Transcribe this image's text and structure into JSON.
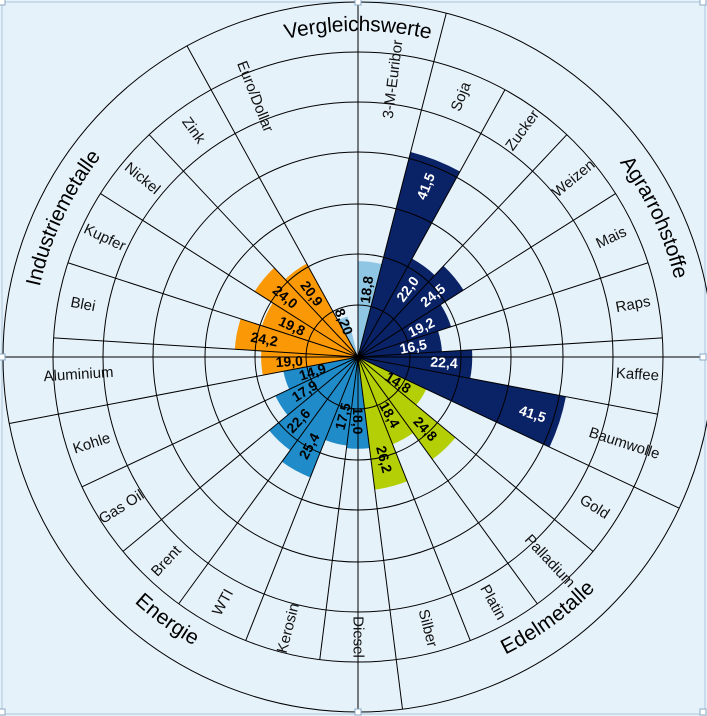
{
  "chart_data": {
    "type": "polar-bar",
    "direction": "clockwise",
    "title": "",
    "colors": {
      "Vergleichswerte": "#8ec6e4",
      "Agrarrohstoffe": "#0a2266",
      "Edelmetalle": "#b5cf06",
      "Energie": "#1f8bc8",
      "Industriemetalle": "#fb9806"
    },
    "label_colors": {
      "Vergleichswerte": "#000000",
      "Agrarrohstoffe": "#ffffff",
      "Edelmetalle": "#000000",
      "Energie": "#000000",
      "Industriemetalle": "#000000"
    },
    "groups": [
      {
        "name": "Vergleichswerte",
        "categories": [
          "3-M-Euribor"
        ],
        "values": [
          18.8
        ],
        "value_labels": [
          "18,8"
        ]
      },
      {
        "name": "Agrarrohstoffe",
        "categories": [
          "Soja",
          "Zucker",
          "Weizen",
          "Mais",
          "Raps",
          "Kaffee",
          "Baumwolle"
        ],
        "values": [
          41.5,
          22.0,
          24.5,
          19.2,
          16.5,
          22.4,
          41.5
        ],
        "value_labels": [
          "41,5",
          "22,0",
          "24,5",
          "19,2",
          "16,5",
          "22,4",
          "41,5"
        ]
      },
      {
        "name": "Edelmetalle",
        "categories": [
          "Gold",
          "Palladium",
          "Platin",
          "Silber"
        ],
        "values": [
          14.8,
          24.8,
          18.4,
          26.2
        ],
        "value_labels": [
          "14,8",
          "24,8",
          "18,4",
          "26,2"
        ]
      },
      {
        "name": "Energie",
        "categories": [
          "Diesel",
          "Kerosin",
          "WTI",
          "Brent",
          "Gas Oil",
          "Kohle"
        ],
        "values": [
          18.0,
          17.5,
          25.4,
          22.6,
          17.9,
          14.9
        ],
        "value_labels": [
          "18,0",
          "17,5",
          "25,4",
          "22,6",
          "17,9",
          "14,9"
        ]
      },
      {
        "name": "Industriemetalle",
        "categories": [
          "Aluminium",
          "Blei",
          "Kupfer",
          "Nickel",
          "Zink"
        ],
        "values": [
          19.0,
          24.2,
          19.8,
          24.0,
          20.9
        ],
        "value_labels": [
          "19,0",
          "24,2",
          "19,8",
          "24,0",
          "20,9"
        ]
      },
      {
        "name": "Vergleichswerte",
        "categories": [
          "Euro/Dollar"
        ],
        "values": [
          8.2
        ],
        "value_labels": [
          "8,20"
        ]
      }
    ],
    "group_labels": [
      {
        "text": "Vergleichswerte"
      },
      {
        "text": "Agrarrohstoffe"
      },
      {
        "text": "Edelmetalle"
      },
      {
        "text": "Energie"
      },
      {
        "text": "Industriemetalle"
      }
    ]
  }
}
